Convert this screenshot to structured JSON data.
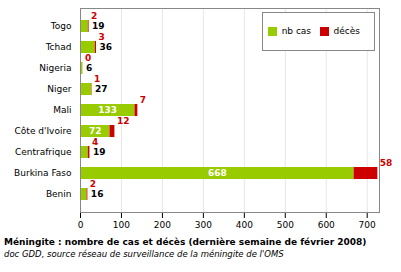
{
  "chart_data": {
    "type": "bar",
    "orientation": "horizontal",
    "stacked": true,
    "title": "Méningite : nombre de cas et décès (dernière semaine de février 2008)",
    "subtitle": "doc GDD, source réseau de surveillance de la méningite de l'OMS",
    "categories": [
      "Benin",
      "Burkina Faso",
      "Centrafrique",
      "Côte d'Ivoire",
      "Mali",
      "Niger",
      "Nigeria",
      "Tchad",
      "Togo"
    ],
    "series": [
      {
        "name": "nb cas",
        "color": "#99cc00",
        "values": [
          16,
          668,
          19,
          72,
          133,
          27,
          6,
          36,
          19
        ]
      },
      {
        "name": "décès",
        "color": "#cc0000",
        "values": [
          2,
          58,
          4,
          12,
          7,
          1,
          0,
          3,
          2
        ]
      }
    ],
    "xlim": [
      0,
      730
    ],
    "xticks": [
      0,
      100,
      200,
      300,
      400,
      500,
      600,
      700
    ],
    "grid": true,
    "legend": "upper right",
    "data_labels": true
  }
}
